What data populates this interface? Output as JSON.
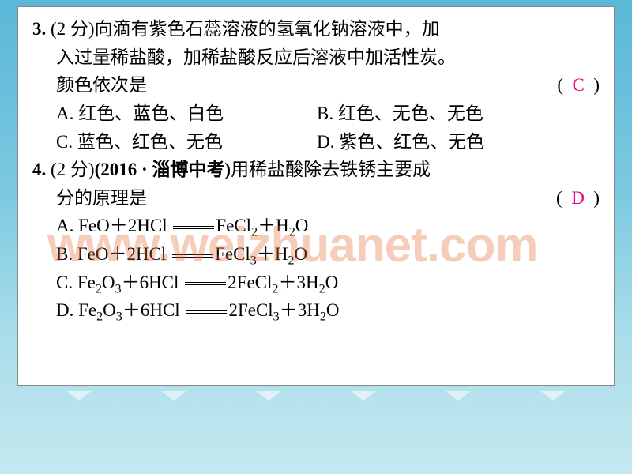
{
  "background": {
    "gradient_top": "#5ab8d8",
    "gradient_bottom": "#c5e8f0",
    "box_bg": "#ffffff",
    "box_border": "#888888",
    "text_color": "#000000",
    "answer_color": "#e6007e",
    "watermark_color": "rgba(230,110,60,0.35)",
    "font_size_main": 23,
    "font_family_main": "SimSun"
  },
  "watermark": "www.weizhuanet.com",
  "q3": {
    "num": "3.",
    "points": "(2 分)",
    "stem1": "向滴有紫色石蕊溶液的氢氧化钠溶液中，加",
    "stem2": "入过量稀盐酸，加稀盐酸反应后溶液中加活性炭。",
    "stem3": "颜色依次是",
    "paren_l": "(",
    "paren_r": ")",
    "answer": "C",
    "optA": "A. 红色、蓝色、白色",
    "optB": "B. 红色、无色、无色",
    "optC": "C. 蓝色、红色、无色",
    "optD": "D. 紫色、红色、无色"
  },
  "q4": {
    "num": "4.",
    "points": "(2 分)",
    "source": "(2016 · 淄博中考)",
    "stem1": "用稀盐酸除去铁锈主要成",
    "stem2": "分的原理是",
    "paren_l": "(",
    "paren_r": ")",
    "answer": "D",
    "A": {
      "label": "A.",
      "lhs1": "FeO",
      "plus": "＋",
      "lhs2": "2HCl",
      "rhs1": "FeCl",
      "sub1": "2",
      "rhs2": "H",
      "sub2": "2",
      "o": "O"
    },
    "B": {
      "label": "B.",
      "lhs1": "FeO",
      "plus": "＋",
      "lhs2": "2HCl",
      "rhs1": "FeCl",
      "sub1": "3",
      "rhs2": "H",
      "sub2": "2",
      "o": "O"
    },
    "C": {
      "label": "C.",
      "lhs1": "Fe",
      "subFe": "2",
      "ox": "O",
      "subO": "3",
      "plus": "＋",
      "lhs2": "6HCl",
      "coef": "2",
      "rhs1": "FeCl",
      "sub1": "2",
      "coef2": "3",
      "rhs2": "H",
      "sub2": "2",
      "o": "O"
    },
    "D": {
      "label": "D.",
      "lhs1": "Fe",
      "subFe": "2",
      "ox": "O",
      "subO": "3",
      "plus": "＋",
      "lhs2": "6HCl",
      "coef": "2",
      "rhs1": "FeCl",
      "sub1": "3",
      "coef2": "3",
      "rhs2": "H",
      "sub2": "2",
      "o": "O"
    }
  }
}
